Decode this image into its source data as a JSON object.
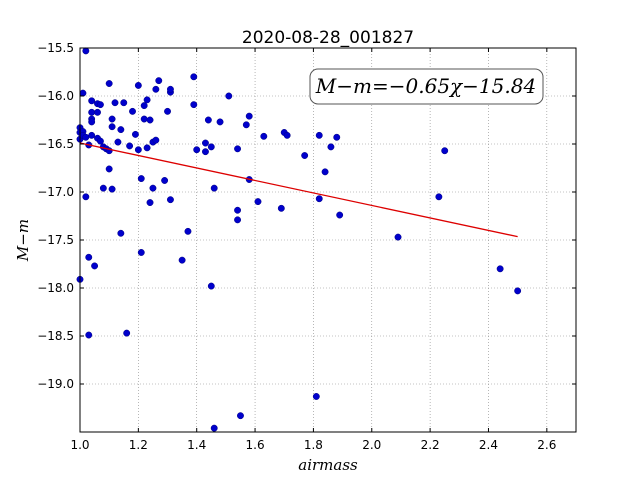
{
  "chart_data": {
    "type": "scatter",
    "title": "2020-08-28_001827",
    "xlabel": "airmass",
    "ylabel": "M−m",
    "xlim": [
      1.0,
      2.7
    ],
    "ylim": [
      -15.5,
      -19.5
    ],
    "y_inverted": true,
    "grid": true,
    "xticks": [
      "1.0",
      "1.2",
      "1.4",
      "1.6",
      "1.8",
      "2.0",
      "2.2",
      "2.4",
      "2.6"
    ],
    "yticks": [
      "−15.5",
      "−16.0",
      "−16.5",
      "−17.0",
      "−17.5",
      "−18.0",
      "−18.5",
      "−19.0"
    ],
    "annotation": "M−m=−0.65χ−15.84",
    "annotation_position": "top-right",
    "colors": {
      "points": "#0000cc",
      "fit": "#dd0000",
      "grid": "#888888"
    },
    "fit": {
      "slope": -0.65,
      "intercept": -15.84,
      "x_range": [
        1.0,
        2.5
      ]
    },
    "points": [
      [
        1.0,
        -16.33
      ],
      [
        1.0,
        -16.45
      ],
      [
        1.0,
        -16.38
      ],
      [
        1.0,
        -17.91
      ],
      [
        1.01,
        -16.37
      ],
      [
        1.01,
        -16.41
      ],
      [
        1.01,
        -15.97
      ],
      [
        1.02,
        -15.53
      ],
      [
        1.02,
        -16.43
      ],
      [
        1.02,
        -17.05
      ],
      [
        1.03,
        -16.51
      ],
      [
        1.03,
        -17.68
      ],
      [
        1.03,
        -18.49
      ],
      [
        1.04,
        -16.17
      ],
      [
        1.04,
        -16.24
      ],
      [
        1.04,
        -16.27
      ],
      [
        1.04,
        -16.41
      ],
      [
        1.04,
        -16.05
      ],
      [
        1.05,
        -17.77
      ],
      [
        1.06,
        -16.17
      ],
      [
        1.06,
        -16.44
      ],
      [
        1.06,
        -16.08
      ],
      [
        1.07,
        -16.47
      ],
      [
        1.07,
        -16.09
      ],
      [
        1.08,
        -16.53
      ],
      [
        1.08,
        -16.96
      ],
      [
        1.09,
        -16.55
      ],
      [
        1.1,
        -16.57
      ],
      [
        1.1,
        -16.76
      ],
      [
        1.1,
        -15.87
      ],
      [
        1.11,
        -16.24
      ],
      [
        1.11,
        -16.32
      ],
      [
        1.11,
        -16.97
      ],
      [
        1.12,
        -16.07
      ],
      [
        1.13,
        -16.48
      ],
      [
        1.14,
        -16.35
      ],
      [
        1.14,
        -17.43
      ],
      [
        1.15,
        -16.07
      ],
      [
        1.16,
        -18.47
      ],
      [
        1.17,
        -16.52
      ],
      [
        1.18,
        -16.16
      ],
      [
        1.19,
        -16.4
      ],
      [
        1.2,
        -15.89
      ],
      [
        1.2,
        -16.56
      ],
      [
        1.21,
        -16.86
      ],
      [
        1.21,
        -17.63
      ],
      [
        1.22,
        -16.1
      ],
      [
        1.22,
        -16.24
      ],
      [
        1.23,
        -16.04
      ],
      [
        1.23,
        -16.54
      ],
      [
        1.24,
        -17.11
      ],
      [
        1.24,
        -16.25
      ],
      [
        1.25,
        -16.48
      ],
      [
        1.25,
        -16.96
      ],
      [
        1.26,
        -15.93
      ],
      [
        1.26,
        -16.46
      ],
      [
        1.27,
        -15.84
      ],
      [
        1.29,
        -16.88
      ],
      [
        1.3,
        -16.16
      ],
      [
        1.31,
        -15.96
      ],
      [
        1.31,
        -15.93
      ],
      [
        1.31,
        -17.08
      ],
      [
        1.35,
        -17.71
      ],
      [
        1.37,
        -17.41
      ],
      [
        1.39,
        -16.09
      ],
      [
        1.39,
        -15.8
      ],
      [
        1.4,
        -16.56
      ],
      [
        1.43,
        -16.49
      ],
      [
        1.43,
        -16.58
      ],
      [
        1.44,
        -16.25
      ],
      [
        1.45,
        -17.98
      ],
      [
        1.45,
        -16.53
      ],
      [
        1.46,
        -16.96
      ],
      [
        1.46,
        -19.46
      ],
      [
        1.48,
        -16.27
      ],
      [
        1.51,
        -16.0
      ],
      [
        1.54,
        -17.19
      ],
      [
        1.54,
        -17.29
      ],
      [
        1.54,
        -16.55
      ],
      [
        1.55,
        -19.33
      ],
      [
        1.57,
        -16.3
      ],
      [
        1.58,
        -16.21
      ],
      [
        1.58,
        -16.87
      ],
      [
        1.61,
        -17.1
      ],
      [
        1.63,
        -16.42
      ],
      [
        1.69,
        -17.17
      ],
      [
        1.7,
        -16.38
      ],
      [
        1.71,
        -16.41
      ],
      [
        1.77,
        -16.62
      ],
      [
        1.81,
        -19.13
      ],
      [
        1.82,
        -16.41
      ],
      [
        1.82,
        -17.07
      ],
      [
        1.84,
        -16.79
      ],
      [
        1.86,
        -16.53
      ],
      [
        1.88,
        -16.43
      ],
      [
        1.89,
        -17.24
      ],
      [
        2.09,
        -17.47
      ],
      [
        2.23,
        -17.05
      ],
      [
        2.25,
        -16.57
      ],
      [
        2.44,
        -17.8
      ],
      [
        2.5,
        -18.03
      ]
    ]
  }
}
